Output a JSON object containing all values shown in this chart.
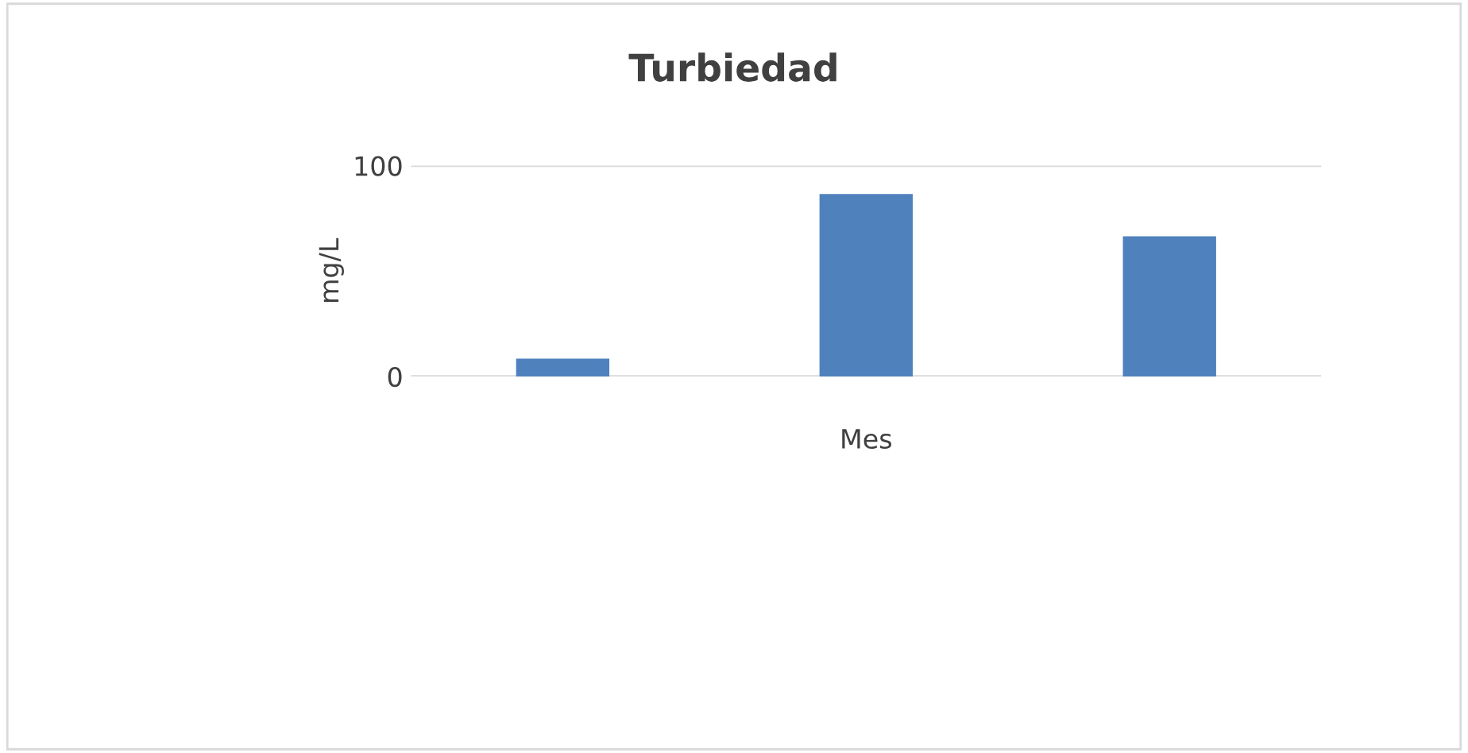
{
  "chart_data": {
    "type": "bar",
    "title": "Turbiedad",
    "xlabel": "Mes",
    "ylabel": "mg/L",
    "categories": [
      null,
      null,
      null
    ],
    "series": [
      {
        "color": "#4f81bd",
        "values": [
          8,
          86,
          66
        ]
      }
    ],
    "ylim": [
      0,
      100
    ],
    "yticks": [
      0,
      100
    ],
    "grid": "y",
    "legend": false
  }
}
